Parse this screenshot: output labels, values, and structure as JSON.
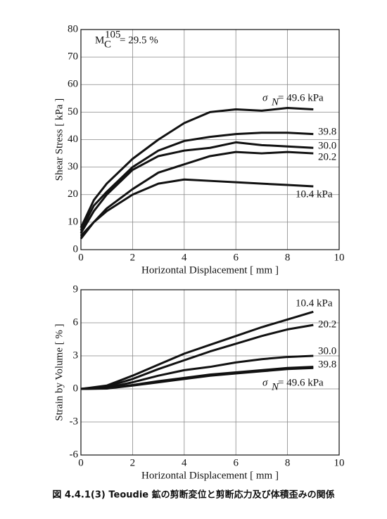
{
  "chart_data": [
    {
      "type": "line",
      "x_label": "Horizontal Displacement [ mm ]",
      "y_label": "Shear Stress [ kPa ]",
      "annotation": {
        "symbol": "M",
        "subscript": "C",
        "superscript": "105",
        "text": "= 29.5 %"
      },
      "sigma_symbol": "σ",
      "sigma_subscript": "N",
      "xlim": [
        0,
        10
      ],
      "xticks": [
        0,
        2,
        4,
        6,
        8,
        10
      ],
      "ylim": [
        0,
        80
      ],
      "yticks": [
        0,
        10,
        20,
        30,
        40,
        50,
        60,
        70,
        80
      ],
      "grid": true,
      "x": [
        0,
        0.5,
        1,
        2,
        3,
        4,
        5,
        6,
        7,
        8,
        9
      ],
      "series": [
        {
          "name": "= 49.6 kPa",
          "color": "#111111",
          "values": [
            8,
            18,
            24,
            33,
            40,
            46,
            50,
            51,
            50.5,
            51.5,
            51
          ]
        },
        {
          "name": "39.8",
          "color": "#111111",
          "values": [
            7,
            16,
            21,
            30,
            36,
            39.5,
            41,
            42,
            42.5,
            42.5,
            42
          ]
        },
        {
          "name": "30.0",
          "color": "#111111",
          "values": [
            6,
            14,
            20,
            29,
            34,
            36,
            37,
            39,
            38,
            37.5,
            37
          ]
        },
        {
          "name": "20.2",
          "color": "#111111",
          "values": [
            4,
            10,
            15,
            22,
            28,
            31,
            34,
            35.5,
            35,
            35.5,
            35
          ]
        },
        {
          "name": "10.4 kPa",
          "color": "#111111",
          "values": [
            5,
            10,
            14,
            20,
            24,
            25.5,
            25,
            24.5,
            24,
            23.5,
            23
          ]
        }
      ]
    },
    {
      "type": "line",
      "x_label": "Horizontal Displacement [ mm ]",
      "y_label": "Strain by Volume [ % ]",
      "sigma_symbol": "σ",
      "sigma_subscript": "N",
      "xlim": [
        0,
        10
      ],
      "xticks": [
        0,
        2,
        4,
        6,
        8,
        10
      ],
      "ylim": [
        -6,
        9
      ],
      "yticks": [
        -6,
        -3,
        0,
        3,
        6,
        9
      ],
      "grid": true,
      "x": [
        0,
        1,
        2,
        3,
        4,
        5,
        6,
        7,
        8,
        9
      ],
      "series": [
        {
          "name": "10.4 kPa",
          "color": "#111111",
          "values": [
            0,
            0.3,
            1.2,
            2.2,
            3.2,
            4.0,
            4.8,
            5.6,
            6.3,
            7.0
          ]
        },
        {
          "name": "20.2",
          "color": "#111111",
          "values": [
            0,
            0.2,
            0.9,
            1.8,
            2.6,
            3.4,
            4.1,
            4.8,
            5.4,
            5.8
          ]
        },
        {
          "name": "30.0",
          "color": "#111111",
          "values": [
            0,
            0.1,
            0.6,
            1.2,
            1.7,
            2.0,
            2.4,
            2.7,
            2.9,
            3.0
          ]
        },
        {
          "name": "39.8",
          "color": "#111111",
          "values": [
            0,
            0.05,
            0.35,
            0.7,
            1.0,
            1.3,
            1.5,
            1.7,
            1.9,
            2.0
          ]
        },
        {
          "name": "= 49.6 kPa",
          "color": "#111111",
          "values": [
            0,
            0.03,
            0.3,
            0.6,
            0.9,
            1.2,
            1.4,
            1.6,
            1.8,
            1.9
          ]
        }
      ]
    }
  ],
  "caption": "図 4.4.1(3)  Teoudie 鉱の剪断変位と剪断応力及び体積歪みの関係"
}
